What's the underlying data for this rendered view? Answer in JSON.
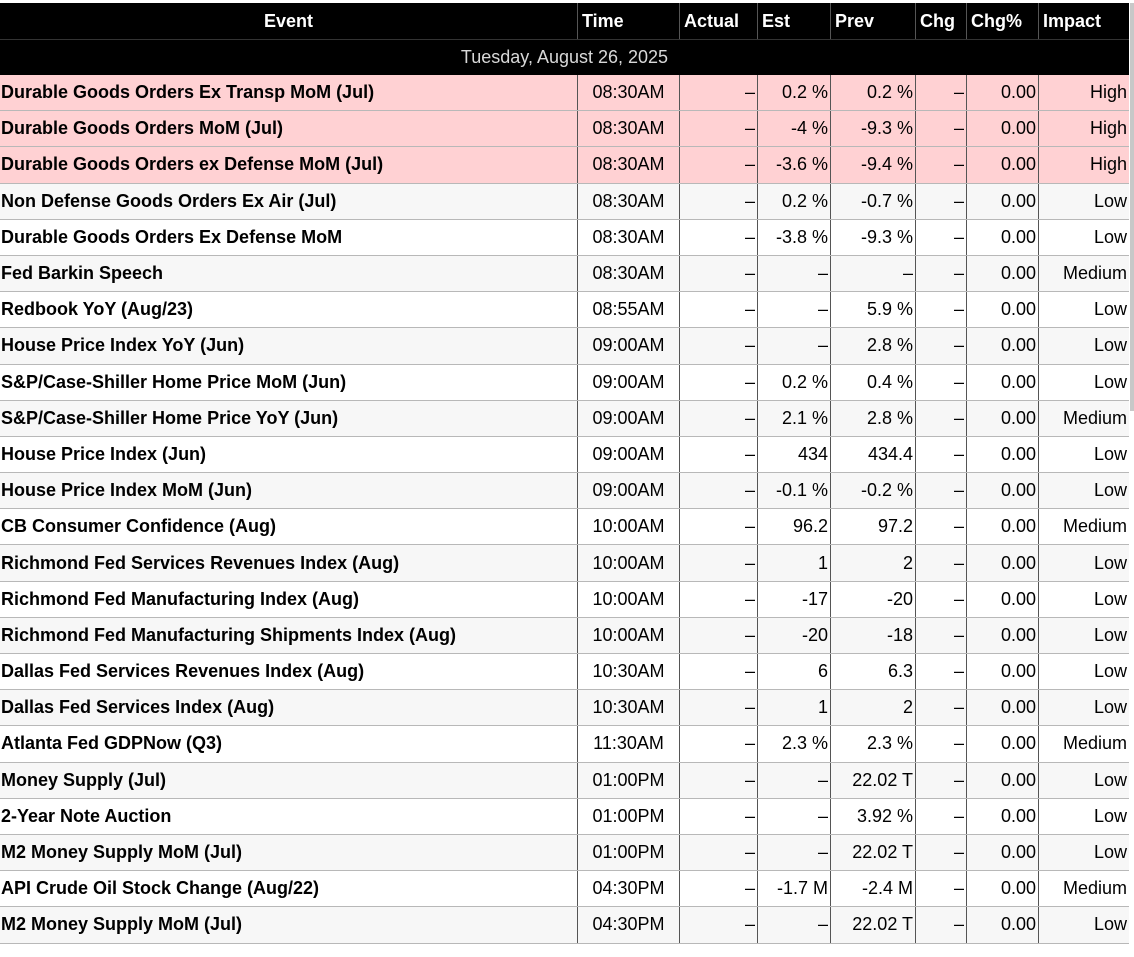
{
  "headers": {
    "event": "Event",
    "time": "Time",
    "actual": "Actual",
    "est": "Est",
    "prev": "Prev",
    "chg": "Chg",
    "chg_pct": "Chg%",
    "impact": "Impact"
  },
  "date_label": "Tuesday, August 26, 2025",
  "colors": {
    "high_impact_row": "#ffd1d3",
    "header_bg": "#000000"
  },
  "rows": [
    {
      "event": "Durable Goods Orders Ex Transp MoM (Jul)",
      "time": "08:30AM",
      "actual": "–",
      "est": "0.2 %",
      "prev": "0.2 %",
      "chg": "–",
      "chg_pct": "0.00",
      "impact": "High"
    },
    {
      "event": "Durable Goods Orders MoM (Jul)",
      "time": "08:30AM",
      "actual": "–",
      "est": "-4 %",
      "prev": "-9.3 %",
      "chg": "–",
      "chg_pct": "0.00",
      "impact": "High"
    },
    {
      "event": "Durable Goods Orders ex Defense MoM (Jul)",
      "time": "08:30AM",
      "actual": "–",
      "est": "-3.6 %",
      "prev": "-9.4 %",
      "chg": "–",
      "chg_pct": "0.00",
      "impact": "High"
    },
    {
      "event": "Non Defense Goods Orders Ex Air (Jul)",
      "time": "08:30AM",
      "actual": "–",
      "est": "0.2 %",
      "prev": "-0.7 %",
      "chg": "–",
      "chg_pct": "0.00",
      "impact": "Low"
    },
    {
      "event": "Durable Goods Orders Ex Defense MoM",
      "time": "08:30AM",
      "actual": "–",
      "est": "-3.8 %",
      "prev": "-9.3 %",
      "chg": "–",
      "chg_pct": "0.00",
      "impact": "Low"
    },
    {
      "event": "Fed Barkin Speech",
      "time": "08:30AM",
      "actual": "–",
      "est": "–",
      "prev": "–",
      "chg": "–",
      "chg_pct": "0.00",
      "impact": "Medium"
    },
    {
      "event": "Redbook YoY (Aug/23)",
      "time": "08:55AM",
      "actual": "–",
      "est": "–",
      "prev": "5.9 %",
      "chg": "–",
      "chg_pct": "0.00",
      "impact": "Low"
    },
    {
      "event": "House Price Index YoY (Jun)",
      "time": "09:00AM",
      "actual": "–",
      "est": "–",
      "prev": "2.8 %",
      "chg": "–",
      "chg_pct": "0.00",
      "impact": "Low"
    },
    {
      "event": "S&P/Case-Shiller Home Price MoM (Jun)",
      "time": "09:00AM",
      "actual": "–",
      "est": "0.2 %",
      "prev": "0.4 %",
      "chg": "–",
      "chg_pct": "0.00",
      "impact": "Low"
    },
    {
      "event": "S&P/Case-Shiller Home Price YoY (Jun)",
      "time": "09:00AM",
      "actual": "–",
      "est": "2.1 %",
      "prev": "2.8 %",
      "chg": "–",
      "chg_pct": "0.00",
      "impact": "Medium"
    },
    {
      "event": "House Price Index (Jun)",
      "time": "09:00AM",
      "actual": "–",
      "est": "434",
      "prev": "434.4",
      "chg": "–",
      "chg_pct": "0.00",
      "impact": "Low"
    },
    {
      "event": "House Price Index MoM (Jun)",
      "time": "09:00AM",
      "actual": "–",
      "est": "-0.1 %",
      "prev": "-0.2 %",
      "chg": "–",
      "chg_pct": "0.00",
      "impact": "Low"
    },
    {
      "event": "CB Consumer Confidence (Aug)",
      "time": "10:00AM",
      "actual": "–",
      "est": "96.2",
      "prev": "97.2",
      "chg": "–",
      "chg_pct": "0.00",
      "impact": "Medium"
    },
    {
      "event": "Richmond Fed Services Revenues Index (Aug)",
      "time": "10:00AM",
      "actual": "–",
      "est": "1",
      "prev": "2",
      "chg": "–",
      "chg_pct": "0.00",
      "impact": "Low"
    },
    {
      "event": "Richmond Fed Manufacturing Index (Aug)",
      "time": "10:00AM",
      "actual": "–",
      "est": "-17",
      "prev": "-20",
      "chg": "–",
      "chg_pct": "0.00",
      "impact": "Low"
    },
    {
      "event": "Richmond Fed Manufacturing Shipments Index (Aug)",
      "time": "10:00AM",
      "actual": "–",
      "est": "-20",
      "prev": "-18",
      "chg": "–",
      "chg_pct": "0.00",
      "impact": "Low"
    },
    {
      "event": "Dallas Fed Services Revenues Index (Aug)",
      "time": "10:30AM",
      "actual": "–",
      "est": "6",
      "prev": "6.3",
      "chg": "–",
      "chg_pct": "0.00",
      "impact": "Low"
    },
    {
      "event": "Dallas Fed Services Index (Aug)",
      "time": "10:30AM",
      "actual": "–",
      "est": "1",
      "prev": "2",
      "chg": "–",
      "chg_pct": "0.00",
      "impact": "Low"
    },
    {
      "event": "Atlanta Fed GDPNow (Q3)",
      "time": "11:30AM",
      "actual": "–",
      "est": "2.3 %",
      "prev": "2.3 %",
      "chg": "–",
      "chg_pct": "0.00",
      "impact": "Medium"
    },
    {
      "event": "Money Supply (Jul)",
      "time": "01:00PM",
      "actual": "–",
      "est": "–",
      "prev": "22.02 T",
      "chg": "–",
      "chg_pct": "0.00",
      "impact": "Low"
    },
    {
      "event": "2-Year Note Auction",
      "time": "01:00PM",
      "actual": "–",
      "est": "–",
      "prev": "3.92 %",
      "chg": "–",
      "chg_pct": "0.00",
      "impact": "Low"
    },
    {
      "event": "M2 Money Supply MoM (Jul)",
      "time": "01:00PM",
      "actual": "–",
      "est": "–",
      "prev": "22.02 T",
      "chg": "–",
      "chg_pct": "0.00",
      "impact": "Low"
    },
    {
      "event": "API Crude Oil Stock Change (Aug/22)",
      "time": "04:30PM",
      "actual": "–",
      "est": "-1.7 M",
      "prev": "-2.4 M",
      "chg": "–",
      "chg_pct": "0.00",
      "impact": "Medium"
    },
    {
      "event": "M2 Money Supply MoM (Jul)",
      "time": "04:30PM",
      "actual": "–",
      "est": "–",
      "prev": "22.02 T",
      "chg": "–",
      "chg_pct": "0.00",
      "impact": "Low"
    }
  ]
}
